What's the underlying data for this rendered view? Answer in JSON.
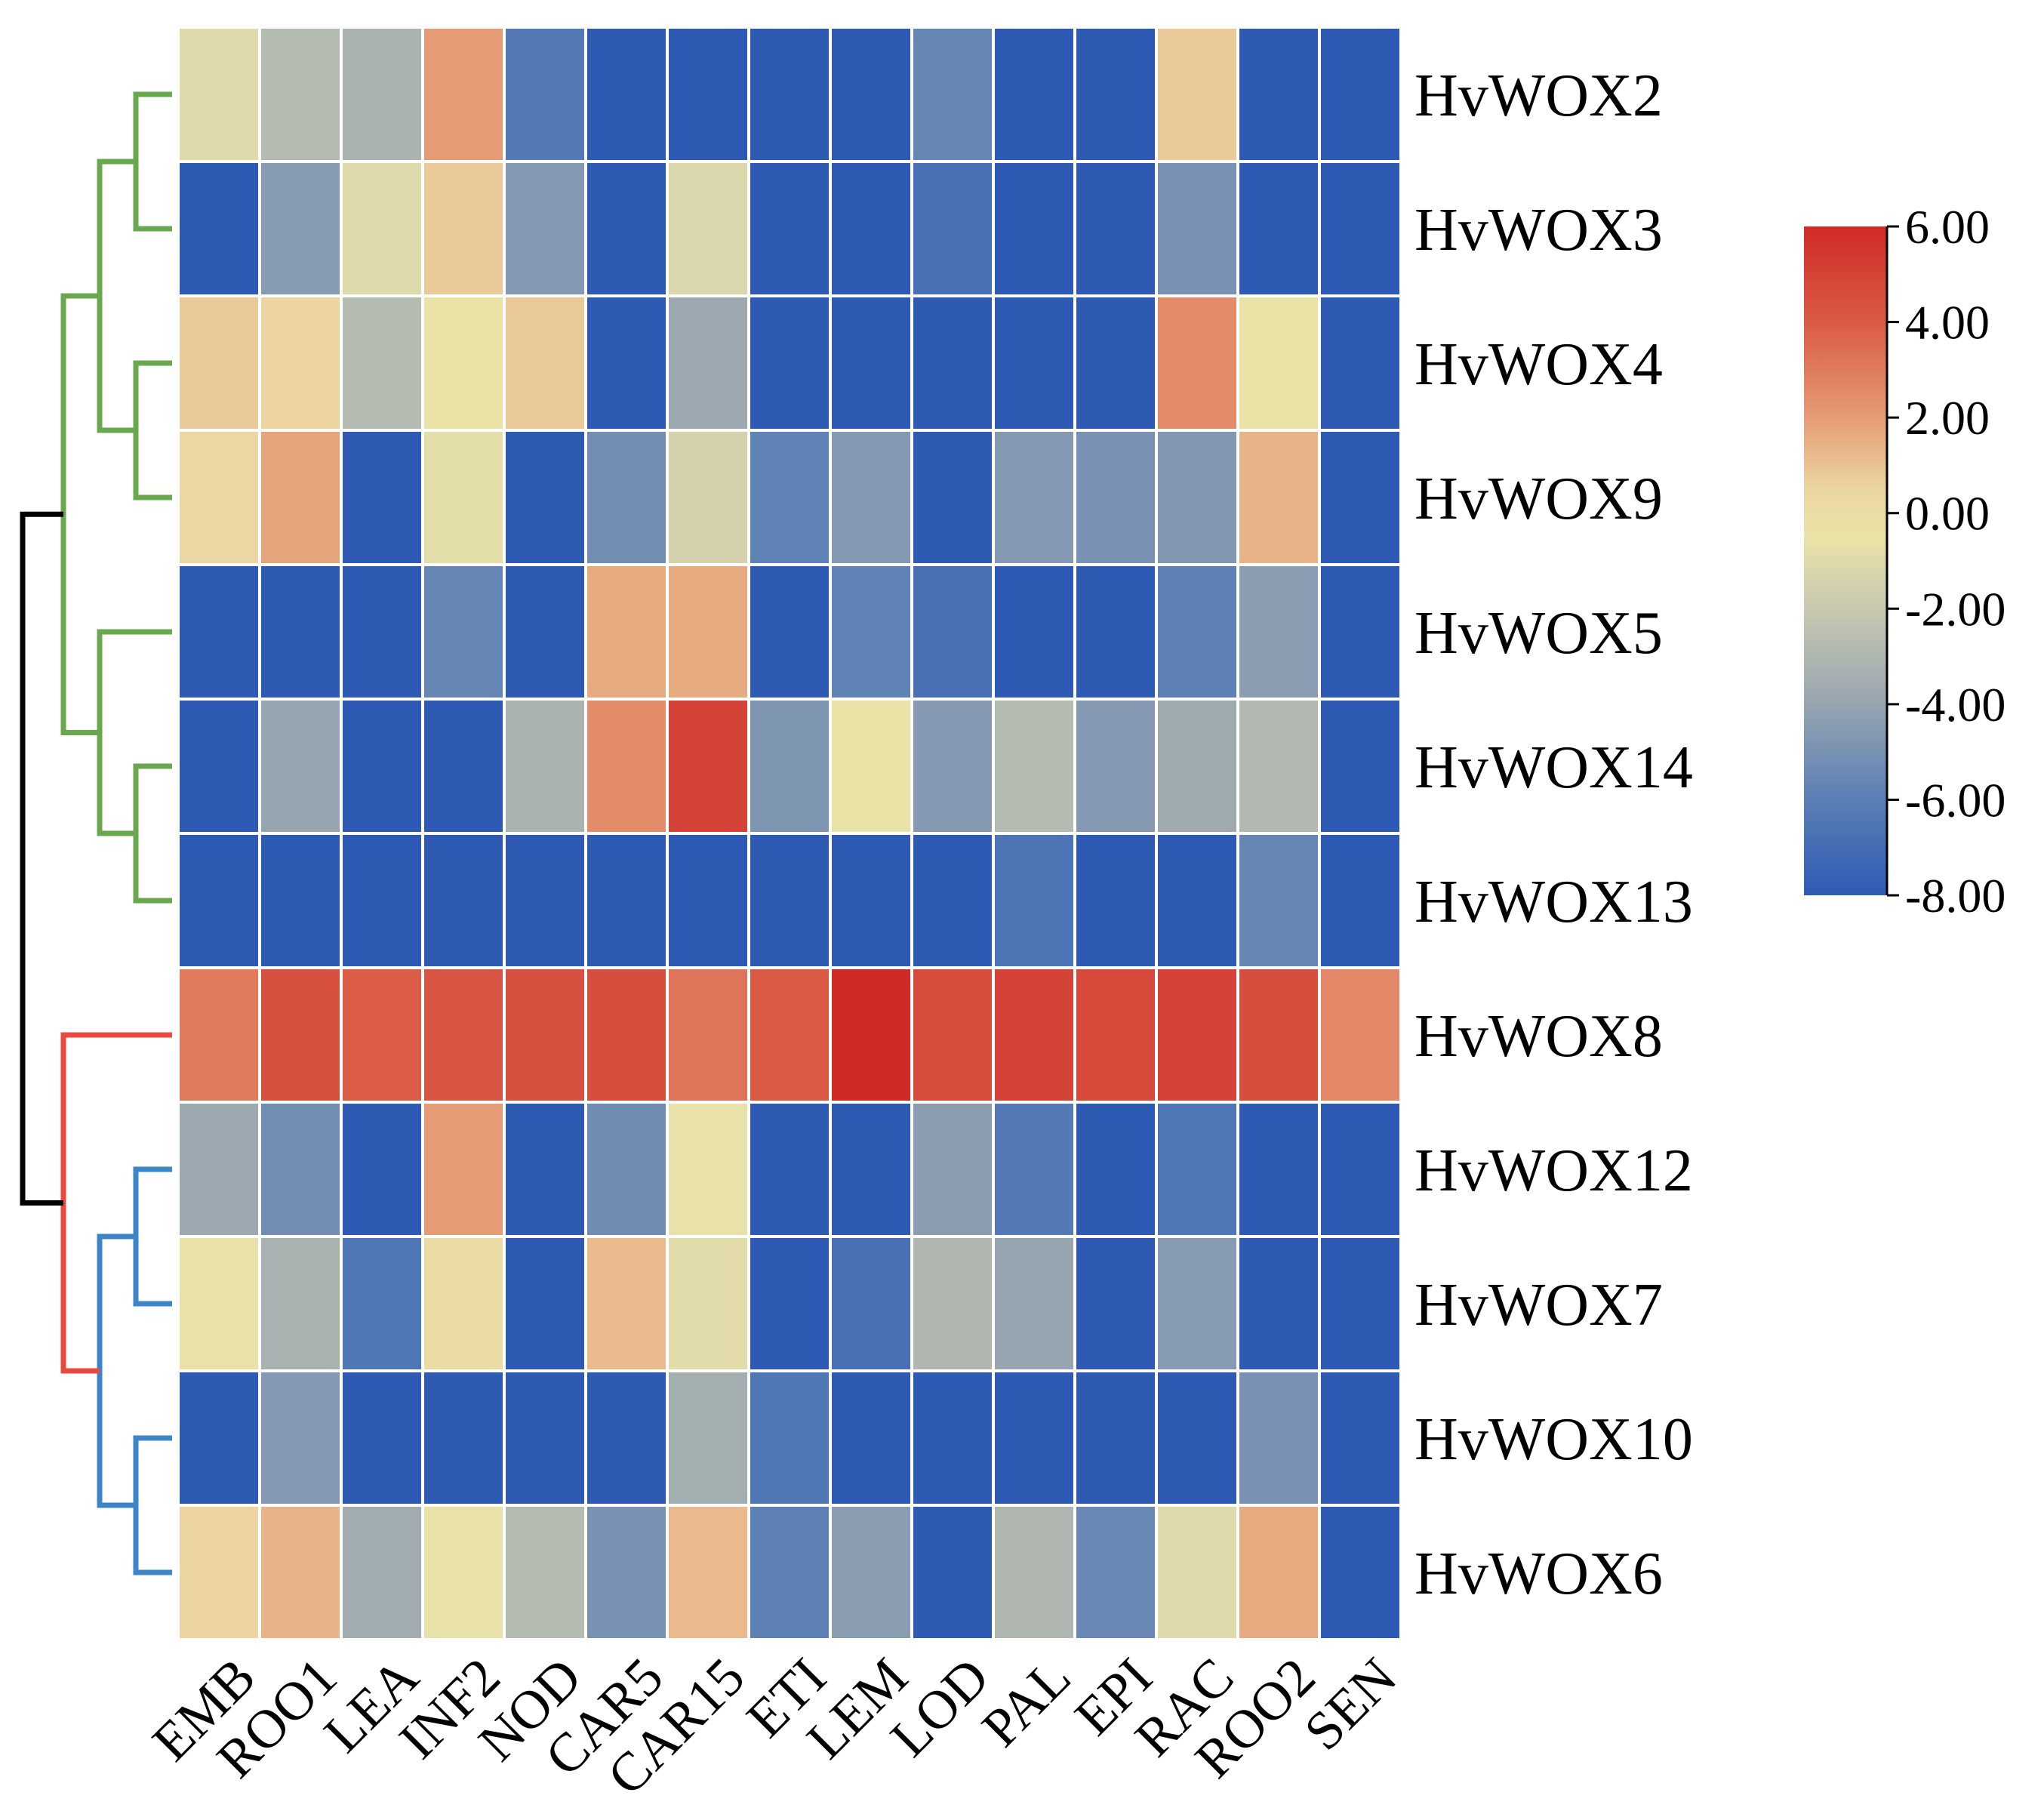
{
  "chart_data": {
    "type": "heatmap",
    "title": "",
    "rows": [
      "HvWOX2",
      "HvWOX3",
      "HvWOX4",
      "HvWOX9",
      "HvWOX5",
      "HvWOX14",
      "HvWOX13",
      "HvWOX8",
      "HvWOX12",
      "HvWOX7",
      "HvWOX10",
      "HvWOX6"
    ],
    "columns": [
      "EMB",
      "ROO1",
      "LEA",
      "INF2",
      "NOD",
      "CAR5",
      "CAR15",
      "ETI",
      "LEM",
      "LOD",
      "PAL",
      "EPI",
      "RAC",
      "ROO2",
      "SEN"
    ],
    "values": [
      [
        -1.0,
        -2.8,
        -3.2,
        2.0,
        -6.3,
        -8.0,
        -8.0,
        -8.0,
        -8.0,
        -5.6,
        -8.0,
        -8.0,
        0.8,
        -8.0,
        -8.0
      ],
      [
        -8.0,
        -4.5,
        -1.0,
        0.8,
        -4.6,
        -8.0,
        -1.2,
        -8.0,
        -8.0,
        -6.8,
        -8.0,
        -8.0,
        -5.0,
        -8.0,
        -8.0
      ],
      [
        0.8,
        0.5,
        -2.8,
        -0.4,
        0.8,
        -8.0,
        -3.8,
        -8.0,
        -8.0,
        -8.0,
        -8.0,
        -8.0,
        2.5,
        -0.5,
        -8.0
      ],
      [
        0.4,
        1.8,
        -8.0,
        -0.8,
        -8.0,
        -5.2,
        -1.5,
        -5.8,
        -4.6,
        -8.0,
        -4.6,
        -5.0,
        -4.7,
        1.4,
        -8.0
      ],
      [
        -8.0,
        -8.0,
        -8.0,
        -5.6,
        -8.0,
        1.6,
        1.6,
        -8.0,
        -5.8,
        -6.8,
        -8.0,
        -8.0,
        -5.9,
        -4.4,
        -8.0
      ],
      [
        -8.0,
        -4.0,
        -8.0,
        -8.0,
        -3.2,
        2.5,
        5.0,
        -4.8,
        -0.5,
        -4.6,
        -2.8,
        -4.6,
        -3.7,
        -2.9,
        -8.0
      ],
      [
        -8.0,
        -8.0,
        -8.0,
        -8.0,
        -8.0,
        -8.0,
        -8.0,
        -8.0,
        -8.0,
        -8.0,
        -6.6,
        -8.0,
        -8.0,
        -5.6,
        -8.0
      ],
      [
        3.0,
        4.4,
        3.9,
        4.2,
        4.4,
        4.5,
        3.2,
        4.0,
        6.0,
        4.6,
        5.0,
        4.7,
        5.0,
        4.5,
        2.6
      ],
      [
        -3.8,
        -5.2,
        -8.0,
        2.0,
        -8.0,
        -5.3,
        -0.6,
        -8.0,
        -8.0,
        -4.4,
        -6.3,
        -8.0,
        -6.5,
        -8.0,
        -8.0
      ],
      [
        -0.6,
        -3.3,
        -6.5,
        0.0,
        -8.0,
        1.2,
        -0.9,
        -8.0,
        -6.8,
        -3.0,
        -4.0,
        -8.0,
        -4.5,
        -8.0,
        -8.0
      ],
      [
        -8.0,
        -4.6,
        -8.0,
        -8.0,
        -8.0,
        -8.0,
        -3.5,
        -6.5,
        -8.0,
        -8.0,
        -8.0,
        -8.0,
        -8.0,
        -5.0,
        -8.0
      ],
      [
        0.5,
        1.4,
        -3.6,
        -0.6,
        -2.8,
        -5.0,
        1.2,
        -5.9,
        -4.4,
        -8.0,
        -3.0,
        -5.5,
        -1.0,
        1.6,
        -8.0
      ]
    ],
    "colorbar": {
      "min": -8.0,
      "max": 6.0,
      "ticks": [
        "6.00",
        "4.00",
        "2.00",
        "0.00",
        "-2.00",
        "-4.00",
        "-6.00",
        "-8.00"
      ],
      "tick_values": [
        6,
        4,
        2,
        0,
        -2,
        -4,
        -6,
        -8
      ],
      "stops": [
        {
          "value": -8,
          "color": "#2f5ab3"
        },
        {
          "value": -6,
          "color": "#5a7fb5"
        },
        {
          "value": -4,
          "color": "#97a5b0"
        },
        {
          "value": -2,
          "color": "#c8c9b0"
        },
        {
          "value": -0.5,
          "color": "#eae3a8"
        },
        {
          "value": 0.5,
          "color": "#ecd5a2"
        },
        {
          "value": 2,
          "color": "#e59c76"
        },
        {
          "value": 4,
          "color": "#da5a46"
        },
        {
          "value": 6,
          "color": "#d02a27"
        }
      ]
    },
    "dendrogram": {
      "clusters": [
        {
          "name": "cluster-1",
          "color": "#6aa84f",
          "members": [
            "HvWOX2",
            "HvWOX3",
            "HvWOX4",
            "HvWOX9",
            "HvWOX5",
            "HvWOX14",
            "HvWOX13"
          ]
        },
        {
          "name": "cluster-2",
          "color": "#e84a3f",
          "members": [
            "HvWOX8"
          ]
        },
        {
          "name": "cluster-3",
          "color": "#3d85c6",
          "members": [
            "HvWOX12",
            "HvWOX7",
            "HvWOX10",
            "HvWOX6"
          ]
        }
      ],
      "root_color": "#000000"
    }
  }
}
